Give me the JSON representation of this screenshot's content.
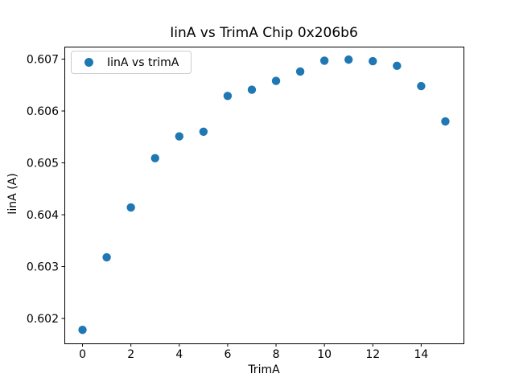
{
  "figure": {
    "title": "IinA vs TrimA Chip 0x206b6"
  },
  "legend": {
    "label": "IinA vs trimA",
    "marker_color": "#1f77b4"
  },
  "chart_data": {
    "type": "scatter",
    "title": "IinA vs TrimA Chip 0x206b6",
    "xlabel": "TrimA",
    "ylabel": "IinA (A)",
    "series": [
      {
        "name": "IinA vs trimA",
        "x": [
          0,
          1,
          2,
          3,
          4,
          5,
          6,
          7,
          8,
          9,
          10,
          11,
          12,
          13,
          14,
          15
        ],
        "y": [
          0.60178,
          0.60318,
          0.60414,
          0.60509,
          0.60551,
          0.6056,
          0.60629,
          0.60641,
          0.60658,
          0.60676,
          0.60697,
          0.60699,
          0.60696,
          0.60687,
          0.60648,
          0.6058
        ]
      }
    ],
    "point_color": "#1f77b4",
    "xlim": [
      -0.75,
      15.75
    ],
    "ylim": [
      0.60152,
      0.60724
    ],
    "xticks": [
      0,
      2,
      4,
      6,
      8,
      10,
      12,
      14
    ],
    "yticks": [
      0.602,
      0.603,
      0.604,
      0.605,
      0.606,
      0.607
    ],
    "ytick_decimals": 3,
    "grid": false,
    "legend_position": "upper left"
  }
}
